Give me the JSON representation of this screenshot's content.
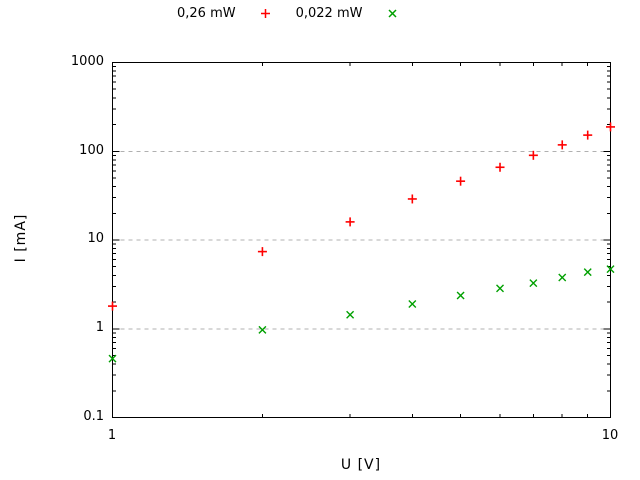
{
  "colors": {
    "series1": "#ff0000",
    "series2": "#00a000",
    "grid": "#b0b0b0",
    "frame": "#000000",
    "text": "#000000"
  },
  "chart_data": {
    "type": "scatter",
    "xscale": "log",
    "yscale": "log",
    "xlim": [
      1,
      10
    ],
    "ylim": [
      0.1,
      1000
    ],
    "xlabel": "U [V]",
    "ylabel": "I [mA]",
    "x_tick_labels": [
      "1",
      "10"
    ],
    "y_tick_labels": [
      "0.1",
      "1",
      "10",
      "100",
      "1000"
    ],
    "grid_lines_at_y": [
      1,
      10,
      100
    ],
    "grid_style": "dashed horizontal",
    "legend_position": "top-center-outside",
    "x": [
      1,
      2,
      3,
      4,
      5,
      6,
      7,
      8,
      9,
      10
    ],
    "series": [
      {
        "name": "0,26 mW",
        "marker": "plus",
        "color": "#ff0000",
        "values": [
          1.8,
          7.4,
          16,
          29,
          46,
          66,
          90,
          118,
          152,
          188
        ]
      },
      {
        "name": "0,022 mW",
        "marker": "cross",
        "color": "#00a000",
        "values": [
          0.46,
          0.97,
          1.44,
          1.9,
          2.37,
          2.85,
          3.27,
          3.78,
          4.35,
          4.7
        ]
      }
    ]
  }
}
